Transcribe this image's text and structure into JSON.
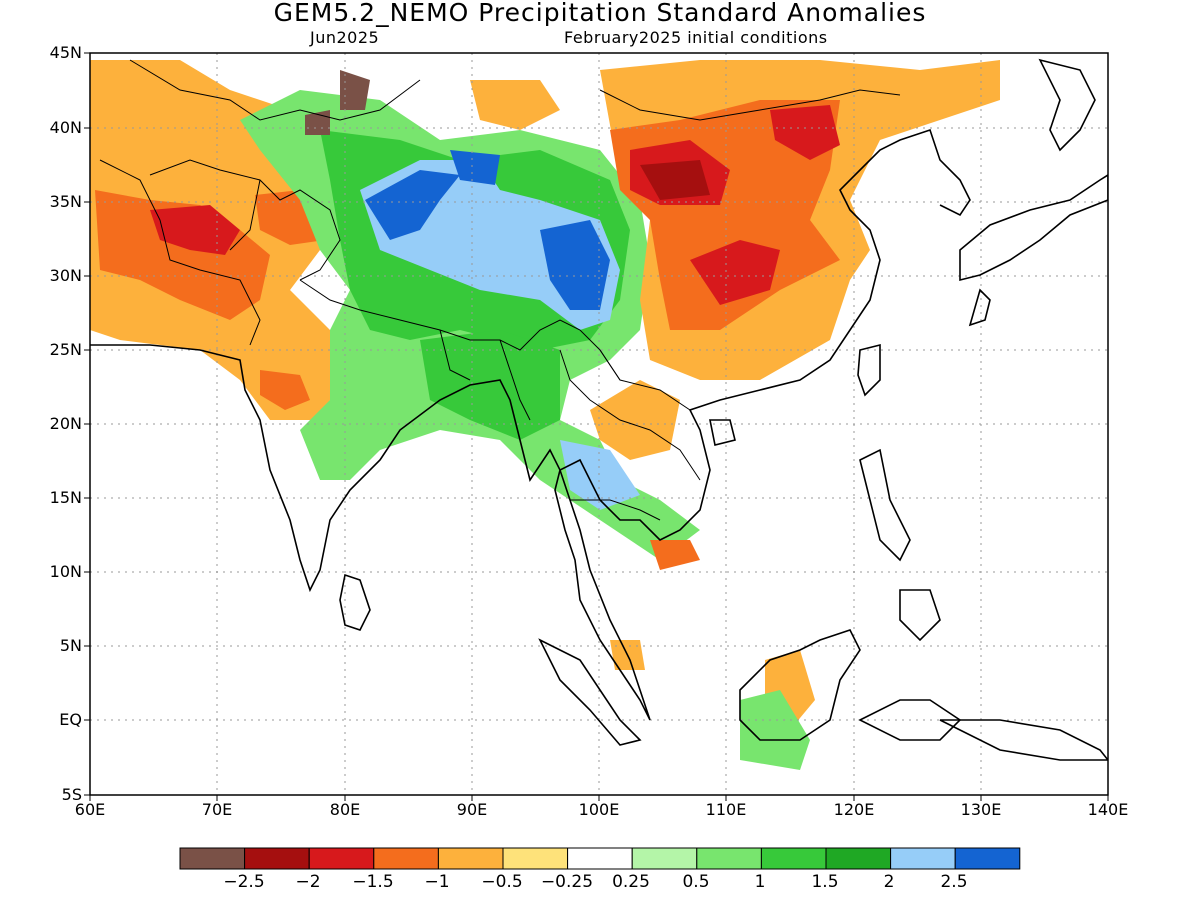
{
  "map": {
    "title": "GEM5.2_NEMO Precipitation Standard Anomalies",
    "target_month": "Jun2025",
    "init_conditions": "February2025 initial conditions",
    "lat_labels": [
      "45N",
      "40N",
      "35N",
      "30N",
      "25N",
      "20N",
      "15N",
      "10N",
      "5N",
      "EQ",
      "5S"
    ],
    "lon_labels": [
      "60E",
      "70E",
      "80E",
      "90E",
      "100E",
      "110E",
      "120E",
      "130E",
      "140E"
    ],
    "extent": {
      "lon_min": 60,
      "lon_max": 140,
      "lat_min": -5,
      "lat_max": 45
    },
    "grid": "dotted"
  },
  "colorbar": {
    "colors": [
      "#7a5147",
      "#a50f0f",
      "#d7191c",
      "#f46d1d",
      "#fdb13c",
      "#fee27a",
      "#ffffff",
      "#b4f5a8",
      "#78e56e",
      "#37c93a",
      "#1fa824",
      "#96cdf8",
      "#1464d2"
    ],
    "labels": [
      "−2.5",
      "−2",
      "−1.5",
      "−1",
      "−0.5",
      "−0.25",
      "0.25",
      "0.5",
      "1",
      "1.5",
      "2",
      "2.5"
    ]
  }
}
